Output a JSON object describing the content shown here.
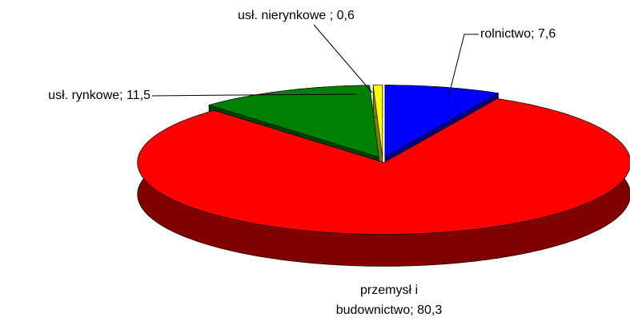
{
  "chart_data": {
    "type": "pie",
    "values": [
      7.6,
      80.3,
      11.5,
      0.6
    ],
    "value_labels": [
      "rolnictwo; 7,6",
      "przemysł i budownictwo; 80,3",
      "usł. rynkowe; 11,5",
      "usł. nierynkowe ; 0,6"
    ],
    "colors": [
      "#0000ff",
      "#ff0000",
      "#008000",
      "#ffff00"
    ],
    "side_colors": [
      "#000080",
      "#800000",
      "#004000",
      "#808000"
    ]
  }
}
